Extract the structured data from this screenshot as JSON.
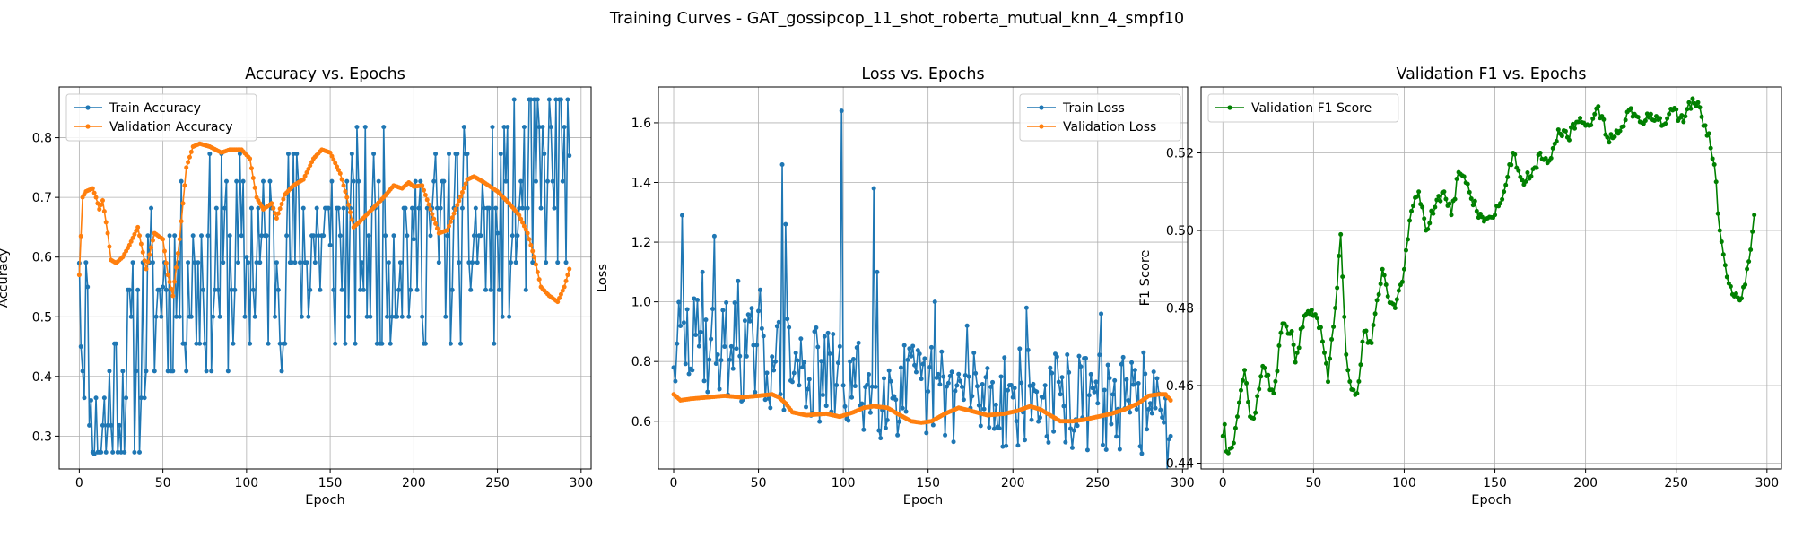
{
  "suptitle": "Training Curves - GAT_gossipcop_11_shot_roberta_mutual_knn_4_smpf10",
  "chart_data": [
    {
      "type": "line",
      "title": "Accuracy vs. Epochs",
      "xlabel": "Epoch",
      "ylabel": "Accuracy",
      "xlim": [
        -12,
        306
      ],
      "ylim": [
        0.245,
        0.885
      ],
      "xticks": [
        0,
        50,
        100,
        150,
        200,
        250,
        300
      ],
      "yticks": [
        0.3,
        0.4,
        0.5,
        0.6,
        0.7,
        0.8
      ],
      "grid": true,
      "legend": "upper-left",
      "series": [
        {
          "name": "Train Accuracy",
          "color": "#1f77b4",
          "noise": {
            "levels": [
              0.273,
              0.318,
              0.364,
              0.409,
              0.455,
              0.5,
              0.545,
              0.591,
              0.636,
              0.682,
              0.727,
              0.773,
              0.818,
              0.864
            ],
            "seed": 11
          },
          "control": [
            [
              0,
              0.59
            ],
            [
              1,
              0.45
            ],
            [
              5,
              0.55
            ],
            [
              7,
              0.36
            ],
            [
              9,
              0.27
            ],
            [
              50,
              0.55
            ],
            [
              100,
              0.6
            ],
            [
              150,
              0.62
            ],
            [
              200,
              0.63
            ],
            [
              250,
              0.64
            ],
            [
              293,
              0.77
            ]
          ]
        },
        {
          "name": "Validation Accuracy",
          "color": "#ff7f0e",
          "control": [
            [
              0,
              0.57
            ],
            [
              2,
              0.7
            ],
            [
              4,
              0.71
            ],
            [
              8,
              0.715
            ],
            [
              10,
              0.7
            ],
            [
              12,
              0.68
            ],
            [
              14,
              0.695
            ],
            [
              17,
              0.64
            ],
            [
              19,
              0.595
            ],
            [
              22,
              0.59
            ],
            [
              26,
              0.6
            ],
            [
              30,
              0.62
            ],
            [
              35,
              0.65
            ],
            [
              40,
              0.58
            ],
            [
              45,
              0.64
            ],
            [
              50,
              0.63
            ],
            [
              53,
              0.57
            ],
            [
              56,
              0.535
            ],
            [
              60,
              0.63
            ],
            [
              64,
              0.75
            ],
            [
              68,
              0.785
            ],
            [
              72,
              0.79
            ],
            [
              78,
              0.785
            ],
            [
              85,
              0.775
            ],
            [
              90,
              0.78
            ],
            [
              97,
              0.78
            ],
            [
              102,
              0.765
            ],
            [
              106,
              0.7
            ],
            [
              110,
              0.68
            ],
            [
              115,
              0.69
            ],
            [
              118,
              0.665
            ],
            [
              123,
              0.705
            ],
            [
              128,
              0.72
            ],
            [
              134,
              0.73
            ],
            [
              140,
              0.765
            ],
            [
              145,
              0.78
            ],
            [
              150,
              0.775
            ],
            [
              156,
              0.74
            ],
            [
              160,
              0.7
            ],
            [
              164,
              0.65
            ],
            [
              168,
              0.66
            ],
            [
              175,
              0.68
            ],
            [
              182,
              0.7
            ],
            [
              188,
              0.72
            ],
            [
              193,
              0.715
            ],
            [
              197,
              0.725
            ],
            [
              200,
              0.718
            ],
            [
              205,
              0.72
            ],
            [
              210,
              0.68
            ],
            [
              215,
              0.64
            ],
            [
              220,
              0.645
            ],
            [
              225,
              0.68
            ],
            [
              232,
              0.73
            ],
            [
              236,
              0.735
            ],
            [
              242,
              0.725
            ],
            [
              250,
              0.71
            ],
            [
              257,
              0.69
            ],
            [
              263,
              0.67
            ],
            [
              268,
              0.64
            ],
            [
              272,
              0.6
            ],
            [
              276,
              0.55
            ],
            [
              281,
              0.535
            ],
            [
              286,
              0.525
            ],
            [
              290,
              0.55
            ],
            [
              293,
              0.58
            ]
          ]
        }
      ]
    },
    {
      "type": "line",
      "title": "Loss vs. Epochs",
      "xlabel": "Epoch",
      "ylabel": "Loss",
      "xlim": [
        -9,
        303
      ],
      "ylim": [
        0.44,
        1.72
      ],
      "xticks": [
        0,
        50,
        100,
        150,
        200,
        250,
        300
      ],
      "yticks": [
        0.6,
        0.8,
        1.0,
        1.2,
        1.4,
        1.6
      ],
      "grid": true,
      "legend": "upper-right",
      "series": [
        {
          "name": "Train Loss",
          "color": "#1f77b4",
          "noise": {
            "amp": 0.17,
            "seed": 29
          },
          "spikes": [
            [
              5,
              1.29
            ],
            [
              17,
              1.1
            ],
            [
              24,
              1.22
            ],
            [
              38,
              1.07
            ],
            [
              51,
              1.04
            ],
            [
              64,
              1.46
            ],
            [
              66,
              1.26
            ],
            [
              99,
              1.64
            ],
            [
              118,
              1.38
            ],
            [
              120,
              1.1
            ],
            [
              154,
              1.0
            ],
            [
              173,
              0.92
            ],
            [
              208,
              0.98
            ],
            [
              252,
              0.96
            ],
            [
              277,
              0.83
            ]
          ],
          "control": [
            [
              0,
              0.78
            ],
            [
              2,
              0.86
            ],
            [
              30,
              0.85
            ],
            [
              60,
              0.8
            ],
            [
              100,
              0.72
            ],
            [
              150,
              0.7
            ],
            [
              200,
              0.68
            ],
            [
              250,
              0.66
            ],
            [
              280,
              0.64
            ],
            [
              293,
              0.55
            ]
          ]
        },
        {
          "name": "Validation Loss",
          "color": "#ff7f0e",
          "control": [
            [
              0,
              0.69
            ],
            [
              4,
              0.67
            ],
            [
              10,
              0.675
            ],
            [
              20,
              0.68
            ],
            [
              30,
              0.685
            ],
            [
              40,
              0.68
            ],
            [
              50,
              0.685
            ],
            [
              58,
              0.69
            ],
            [
              62,
              0.68
            ],
            [
              66,
              0.66
            ],
            [
              70,
              0.63
            ],
            [
              78,
              0.62
            ],
            [
              90,
              0.625
            ],
            [
              98,
              0.615
            ],
            [
              106,
              0.63
            ],
            [
              112,
              0.645
            ],
            [
              118,
              0.65
            ],
            [
              126,
              0.645
            ],
            [
              132,
              0.625
            ],
            [
              140,
              0.6
            ],
            [
              146,
              0.595
            ],
            [
              152,
              0.6
            ],
            [
              160,
              0.625
            ],
            [
              168,
              0.645
            ],
            [
              175,
              0.635
            ],
            [
              185,
              0.62
            ],
            [
              195,
              0.625
            ],
            [
              203,
              0.635
            ],
            [
              210,
              0.65
            ],
            [
              216,
              0.64
            ],
            [
              222,
              0.62
            ],
            [
              228,
              0.6
            ],
            [
              235,
              0.6
            ],
            [
              242,
              0.605
            ],
            [
              250,
              0.615
            ],
            [
              258,
              0.625
            ],
            [
              266,
              0.64
            ],
            [
              274,
              0.66
            ],
            [
              280,
              0.685
            ],
            [
              286,
              0.69
            ],
            [
              290,
              0.69
            ],
            [
              293,
              0.67
            ]
          ]
        }
      ]
    },
    {
      "type": "line",
      "title": "Validation F1 vs. Epochs",
      "xlabel": "Epoch",
      "ylabel": "F1 Score",
      "xlim": [
        -12,
        308
      ],
      "ylim": [
        0.4385,
        0.537
      ],
      "xticks": [
        0,
        50,
        100,
        150,
        200,
        250,
        300
      ],
      "yticks": [
        0.44,
        0.46,
        0.48,
        0.5,
        0.52
      ],
      "grid": true,
      "legend": "upper-left",
      "series": [
        {
          "name": "Validation F1 Score",
          "color": "#008000",
          "noise": {
            "amp": 0.0015,
            "seed": 47
          },
          "control": [
            [
              0,
              0.447
            ],
            [
              1,
              0.45
            ],
            [
              2,
              0.443
            ],
            [
              5,
              0.444
            ],
            [
              8,
              0.452
            ],
            [
              12,
              0.464
            ],
            [
              15,
              0.452
            ],
            [
              18,
              0.453
            ],
            [
              22,
              0.465
            ],
            [
              28,
              0.458
            ],
            [
              33,
              0.476
            ],
            [
              38,
              0.474
            ],
            [
              40,
              0.466
            ],
            [
              45,
              0.478
            ],
            [
              50,
              0.478
            ],
            [
              54,
              0.475
            ],
            [
              58,
              0.461
            ],
            [
              62,
              0.48
            ],
            [
              65,
              0.499
            ],
            [
              68,
              0.468
            ],
            [
              71,
              0.459
            ],
            [
              74,
              0.458
            ],
            [
              78,
              0.474
            ],
            [
              82,
              0.471
            ],
            [
              85,
              0.482
            ],
            [
              88,
              0.49
            ],
            [
              91,
              0.483
            ],
            [
              95,
              0.48
            ],
            [
              100,
              0.49
            ],
            [
              104,
              0.505
            ],
            [
              108,
              0.51
            ],
            [
              112,
              0.5
            ],
            [
              117,
              0.506
            ],
            [
              122,
              0.51
            ],
            [
              126,
              0.504
            ],
            [
              130,
              0.515
            ],
            [
              135,
              0.512
            ],
            [
              140,
              0.505
            ],
            [
              145,
              0.503
            ],
            [
              150,
              0.504
            ],
            [
              155,
              0.51
            ],
            [
              160,
              0.52
            ],
            [
              165,
              0.513
            ],
            [
              170,
              0.514
            ],
            [
              175,
              0.52
            ],
            [
              180,
              0.518
            ],
            [
              185,
              0.526
            ],
            [
              190,
              0.524
            ],
            [
              196,
              0.528
            ],
            [
              202,
              0.527
            ],
            [
              207,
              0.532
            ],
            [
              212,
              0.524
            ],
            [
              218,
              0.525
            ],
            [
              224,
              0.531
            ],
            [
              230,
              0.528
            ],
            [
              236,
              0.53
            ],
            [
              242,
              0.527
            ],
            [
              248,
              0.531
            ],
            [
              254,
              0.528
            ],
            [
              259,
              0.534
            ],
            [
              262,
              0.533
            ],
            [
              265,
              0.527
            ],
            [
              268,
              0.525
            ],
            [
              271,
              0.517
            ],
            [
              274,
              0.5
            ],
            [
              278,
              0.488
            ],
            [
              282,
              0.483
            ],
            [
              285,
              0.482
            ],
            [
              288,
              0.486
            ],
            [
              290,
              0.492
            ],
            [
              293,
              0.504
            ]
          ]
        }
      ]
    }
  ]
}
